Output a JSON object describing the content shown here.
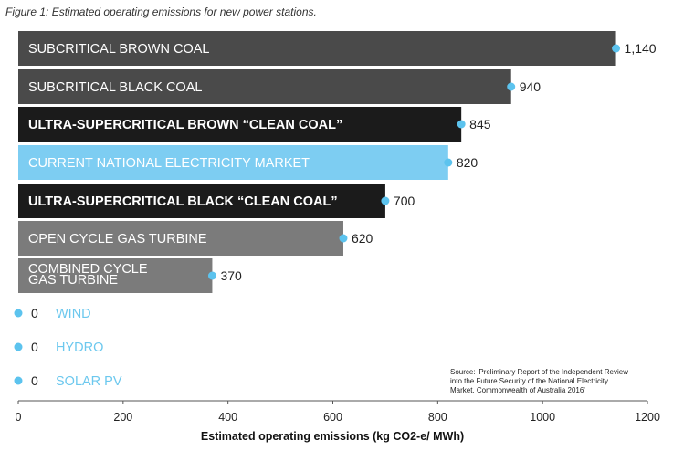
{
  "caption": "Figure 1: Estimated operating emissions for new power stations.",
  "source": {
    "line1": "Source: 'Preliminary Report of the Independent Review",
    "line2": "into the Future Security of the National Electricity",
    "line3": "Market, Commonwealth of Australia 2016'"
  },
  "colors": {
    "dark_grey": "#4a4a4a",
    "black": "#1b1b1b",
    "light_blue": "#7dcdf2",
    "mid_grey": "#7b7b7b",
    "dot": "#5cc3ee",
    "zero_label": "#6cc8ee"
  },
  "chart_data": {
    "type": "bar",
    "orientation": "horizontal",
    "xlabel": "Estimated operating emissions (kg CO2-e/ MWh)",
    "xlim": [
      0,
      1200
    ],
    "xticks": [
      0,
      200,
      400,
      600,
      800,
      1000,
      1200
    ],
    "grid": false,
    "bars": [
      {
        "label": "SUBCRITICAL BROWN COAL",
        "value": 1140,
        "value_label": "1,140",
        "color": "#4a4a4a",
        "bold": false
      },
      {
        "label": "SUBCRITICAL BLACK COAL",
        "value": 940,
        "value_label": "940",
        "color": "#4a4a4a",
        "bold": false
      },
      {
        "label": "ULTRA-SUPERCRITICAL BROWN “CLEAN COAL”",
        "value": 845,
        "value_label": "845",
        "color": "#1b1b1b",
        "bold": true
      },
      {
        "label": "CURRENT NATIONAL ELECTRICITY MARKET",
        "value": 820,
        "value_label": "820",
        "color": "#7dcdf2",
        "bold": false
      },
      {
        "label": "ULTRA-SUPERCRITICAL BLACK “CLEAN COAL”",
        "value": 700,
        "value_label": "700",
        "color": "#1b1b1b",
        "bold": true
      },
      {
        "label": "OPEN CYCLE GAS TURBINE",
        "value": 620,
        "value_label": "620",
        "color": "#7b7b7b",
        "bold": false
      },
      {
        "label": [
          "COMBINED CYCLE",
          "GAS TURBINE"
        ],
        "value": 370,
        "value_label": "370",
        "color": "#7b7b7b",
        "bold": false
      },
      {
        "label": "WIND",
        "value": 0,
        "value_label": "0",
        "color": "#7dcdf2",
        "bold": false
      },
      {
        "label": "HYDRO",
        "value": 0,
        "value_label": "0",
        "color": "#7dcdf2",
        "bold": false
      },
      {
        "label": "SOLAR PV",
        "value": 0,
        "value_label": "0",
        "color": "#7dcdf2",
        "bold": false
      }
    ]
  }
}
